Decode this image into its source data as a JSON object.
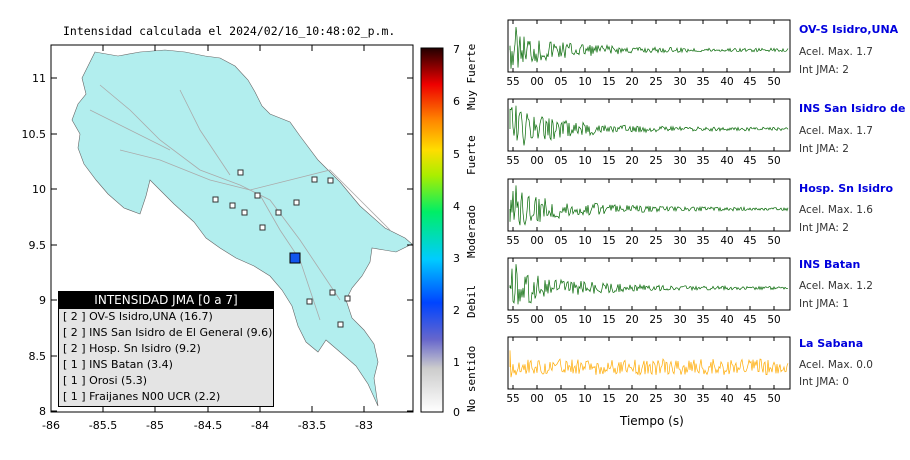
{
  "map": {
    "title": "Intensidad calculada el 2024/02/16_10:48:02_p.m.",
    "lat_ticks": [
      "11",
      "10.5",
      "10",
      "9.5",
      "9",
      "8.5",
      "8"
    ],
    "lon_ticks": [
      "-86",
      "-85.5",
      "-85",
      "-84.5",
      "-84",
      "-83.5",
      "-83"
    ],
    "land_color": "#b2eeee",
    "epicenter_color": "#1155ee"
  },
  "legend": {
    "header": "INTENSIDAD JMA [0 a 7]",
    "items": [
      "[ 2 ]  OV-S Isidro,UNA (16.7)",
      "[ 2 ]  INS San Isidro de El General (9.6)",
      "[ 2 ]  Hosp. Sn Isidro (9.2)",
      "[ 1 ]  INS Batan (3.4)",
      "[ 1 ]  Orosi (5.3)",
      "[ 1 ]  Fraijanes N00 UCR (2.2)"
    ]
  },
  "scale": {
    "numbers": [
      "7",
      "6",
      "5",
      "4",
      "3",
      "2",
      "1",
      "0"
    ],
    "words": [
      "Muy Fuerte",
      "Fuerte",
      "Moderado",
      "Debil",
      "No sentido"
    ]
  },
  "stations": [
    {
      "name": "OV-S Isidro,UNA",
      "acel": "Acel. Max. 1.7",
      "int": "Int JMA: 2",
      "color": "#006600"
    },
    {
      "name": "INS San Isidro de El Ge",
      "acel": "Acel. Max. 1.7",
      "int": "Int JMA: 2",
      "color": "#006600"
    },
    {
      "name": "Hosp. Sn Isidro",
      "acel": "Acel. Max. 1.6",
      "int": "Int JMA: 2",
      "color": "#006600"
    },
    {
      "name": "INS Batan",
      "acel": "Acel. Max. 1.2",
      "int": "Int JMA: 1",
      "color": "#006600"
    },
    {
      "name": "La Sabana",
      "acel": "Acel. Max. 0.0",
      "int": "Int JMA: 0",
      "color": "#ffaa00"
    }
  ],
  "time_ticks": [
    "55",
    "00",
    "05",
    "10",
    "15",
    "20",
    "25",
    "30",
    "35",
    "40",
    "45",
    "50"
  ],
  "time_label": "Tiempo (s)"
}
